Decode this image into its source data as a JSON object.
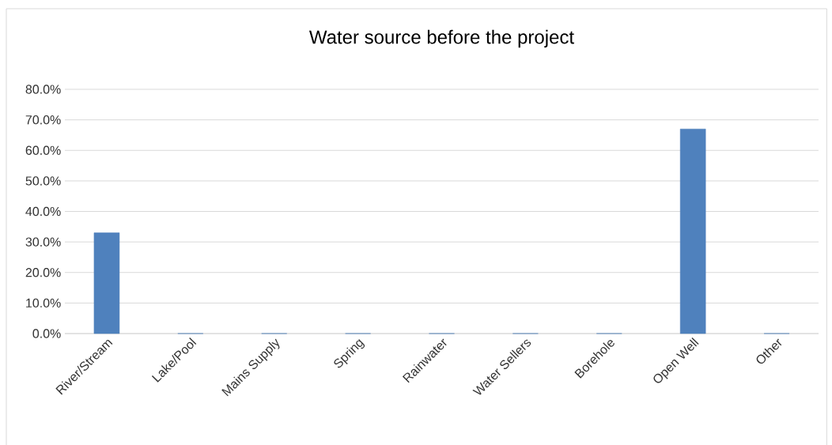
{
  "chart_data": {
    "type": "bar",
    "title": "Water source before the project",
    "categories": [
      "River/Stream",
      "Lake/Pool",
      "Mains Supply",
      "Spring",
      "Rainwater",
      "Water Sellers",
      "Borehole",
      "Open Well",
      "Other"
    ],
    "values": [
      33,
      0,
      0,
      0,
      0,
      0,
      0,
      67,
      0
    ],
    "color": "#4f81bd",
    "ylim": [
      0,
      80
    ],
    "yticks": [
      {
        "value": 0,
        "label": "0.0%"
      },
      {
        "value": 10,
        "label": "10.0%"
      },
      {
        "value": 20,
        "label": "20.0%"
      },
      {
        "value": 30,
        "label": "30.0%"
      },
      {
        "value": 40,
        "label": "40.0%"
      },
      {
        "value": 50,
        "label": "50.0%"
      },
      {
        "value": 60,
        "label": "60.0%"
      },
      {
        "value": 70,
        "label": "70.0%"
      },
      {
        "value": 80,
        "label": "80.0%"
      }
    ],
    "grid": "y"
  }
}
